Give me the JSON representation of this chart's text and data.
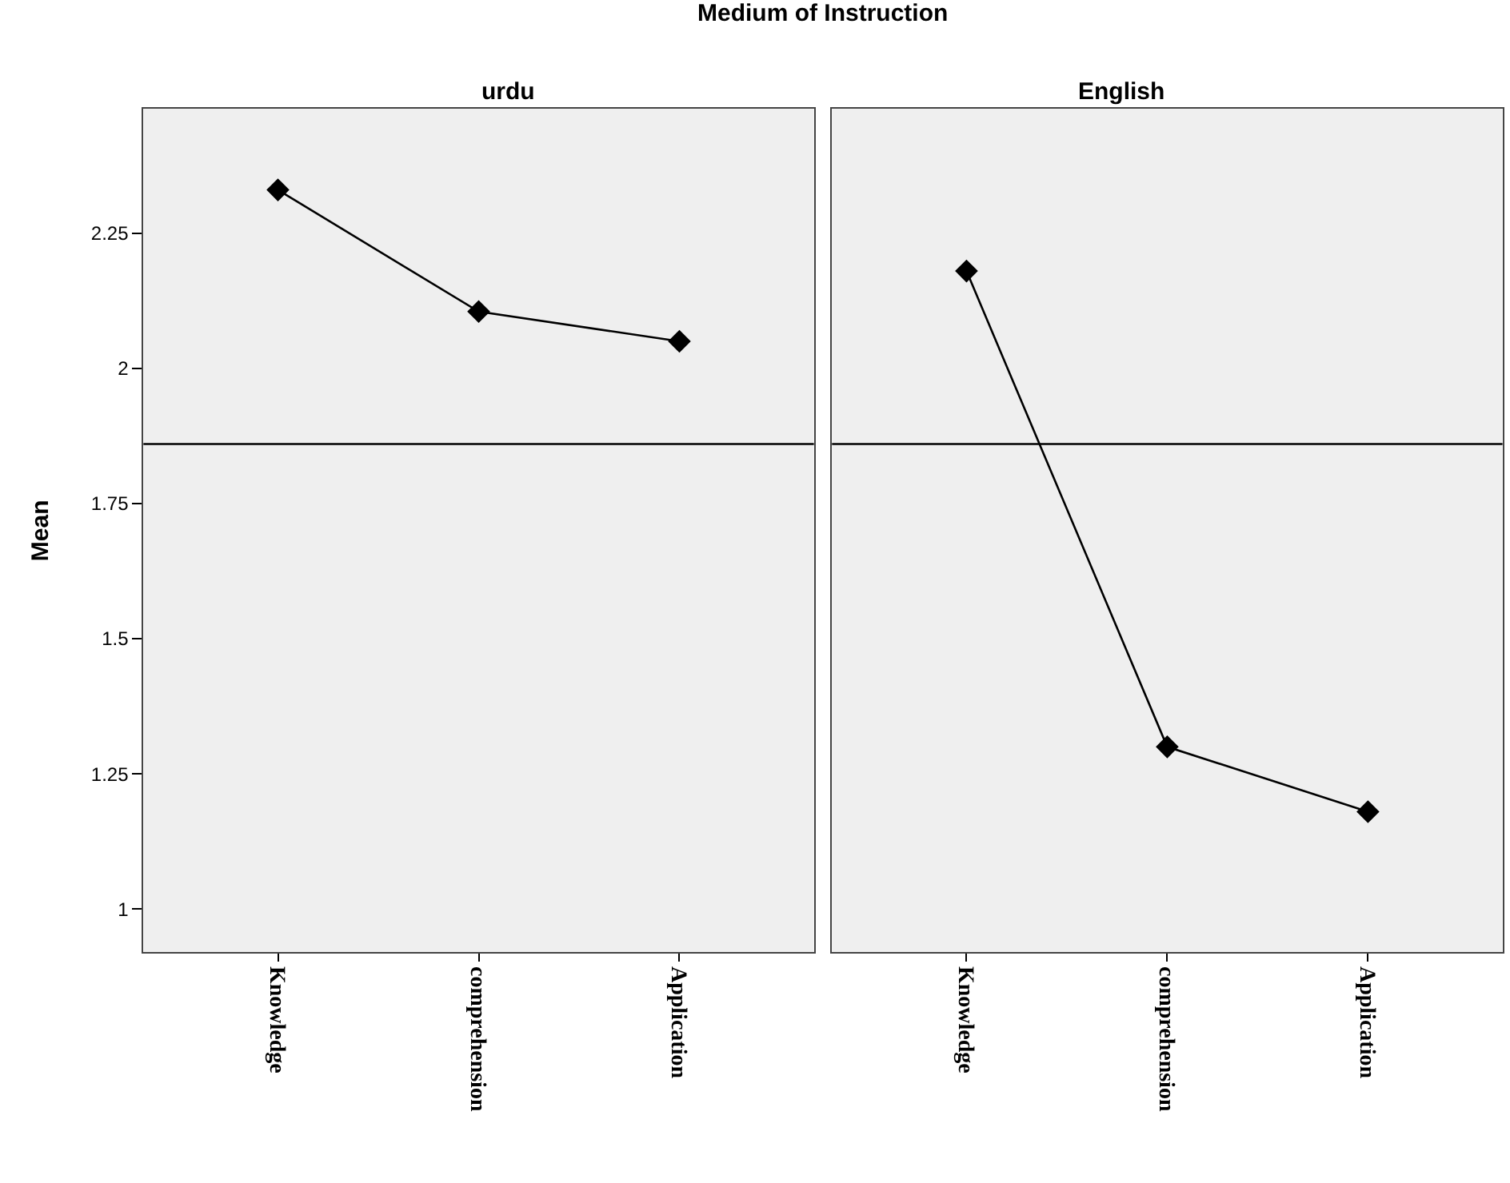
{
  "chart_data": [
    {
      "type": "line",
      "title": "urdu",
      "ylabel": "Mean",
      "annotations": [
        "Medium of Instruction"
      ],
      "categories": [
        "Knowledge",
        "comprehension",
        "Application"
      ],
      "series": [
        {
          "color": "#000000",
          "values": [
            2.33,
            2.105,
            2.05
          ]
        }
      ],
      "ylim": [
        0.92,
        2.48
      ],
      "yticks": [
        1,
        1.25,
        1.5,
        1.75,
        2,
        2.25
      ],
      "ref_lines": [
        {
          "axis": "y",
          "value": 1.86,
          "color": "#000000"
        }
      ],
      "marker": "diamond",
      "line_style": "solid",
      "grid": false
    },
    {
      "type": "line",
      "title": "English",
      "categories": [
        "Knowledge",
        "comprehension",
        "Application"
      ],
      "series": [
        {
          "color": "#000000",
          "values": [
            2.18,
            1.3,
            1.18
          ]
        }
      ],
      "ylim": [
        0.92,
        2.48
      ],
      "ref_lines": [
        {
          "axis": "y",
          "value": 1.86,
          "color": "#000000"
        }
      ],
      "marker": "diamond",
      "line_style": "solid",
      "grid": false,
      "tick_labels": "x"
    }
  ]
}
